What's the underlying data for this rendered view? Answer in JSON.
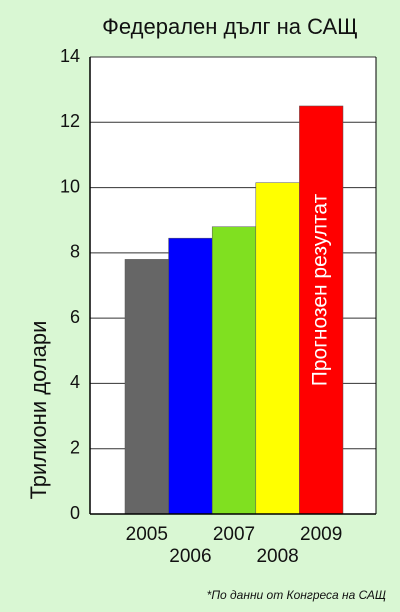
{
  "chart_data": {
    "type": "bar",
    "title": "Федерален дълг на САЩ",
    "y_label": "Трилиони долари",
    "categories": [
      "2005",
      "2006",
      "2007",
      "2008",
      "2009"
    ],
    "values": [
      7.8,
      8.45,
      8.8,
      10.15,
      12.5
    ],
    "colors": [
      "#666666",
      "#0000ff",
      "#80e020",
      "#ffff00",
      "#ff0000"
    ],
    "ylim": [
      0,
      14
    ],
    "yticks": [
      0,
      2,
      4,
      6,
      8,
      10,
      12,
      14
    ],
    "grid": true,
    "annotation": "Прогнозен резултат",
    "footnote": "*По данни от Конгреса на САЩ"
  }
}
